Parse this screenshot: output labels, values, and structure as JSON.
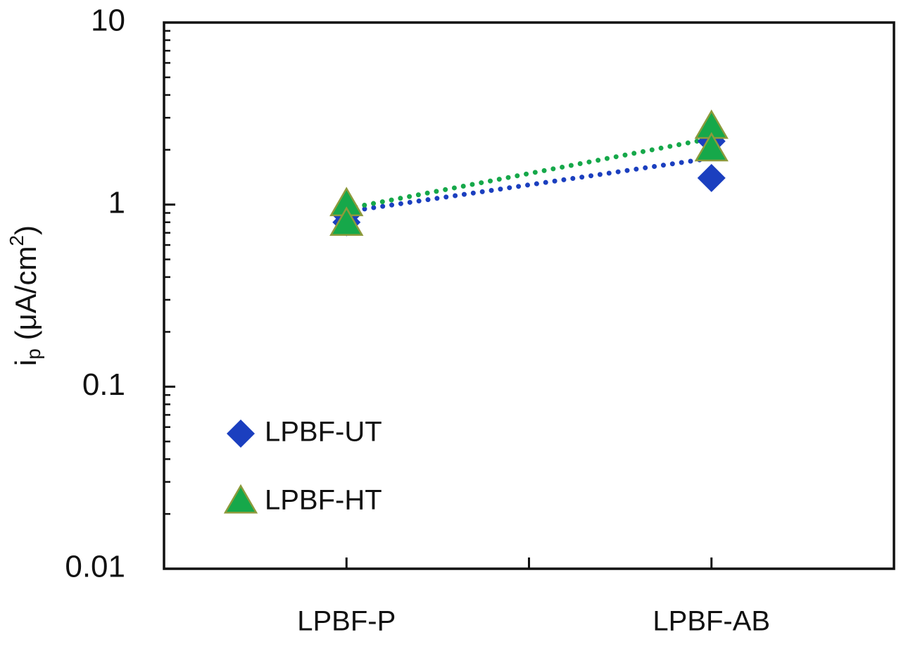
{
  "chart_data": {
    "type": "scatter",
    "ylabel": {
      "main": "i",
      "sub": "p",
      "rest": " (μA/cm",
      "sup": "2",
      "end": ")"
    },
    "xlim": [
      0,
      4
    ],
    "xticks": [
      {
        "value": 1,
        "label": "LPBF-P"
      },
      {
        "value": 3,
        "label": "LPBF-AB"
      }
    ],
    "xminorticks": [
      2
    ],
    "ylim": [
      0.01,
      10
    ],
    "yticks": [
      0.01,
      0.1,
      1,
      10
    ],
    "log_y": true,
    "legend": "lower left",
    "series": [
      {
        "name": "LPBF-UT",
        "marker": "diamond",
        "color": "#1b3fbf",
        "x": [
          1,
          1,
          3,
          3
        ],
        "values": [
          0.875,
          0.8,
          1.4,
          2.23
        ],
        "trendline": {
          "x": [
            1,
            3
          ],
          "values": [
            0.915,
            1.8
          ]
        }
      },
      {
        "name": "LPBF-HT",
        "marker": "triangle",
        "color": "#16a84a",
        "edge": "#8d9a3c",
        "x": [
          1,
          1,
          3,
          3
        ],
        "values": [
          1.0,
          0.78,
          2.66,
          2.0
        ],
        "trendline": {
          "x": [
            1,
            3
          ],
          "values": [
            0.95,
            2.31
          ]
        }
      }
    ]
  }
}
